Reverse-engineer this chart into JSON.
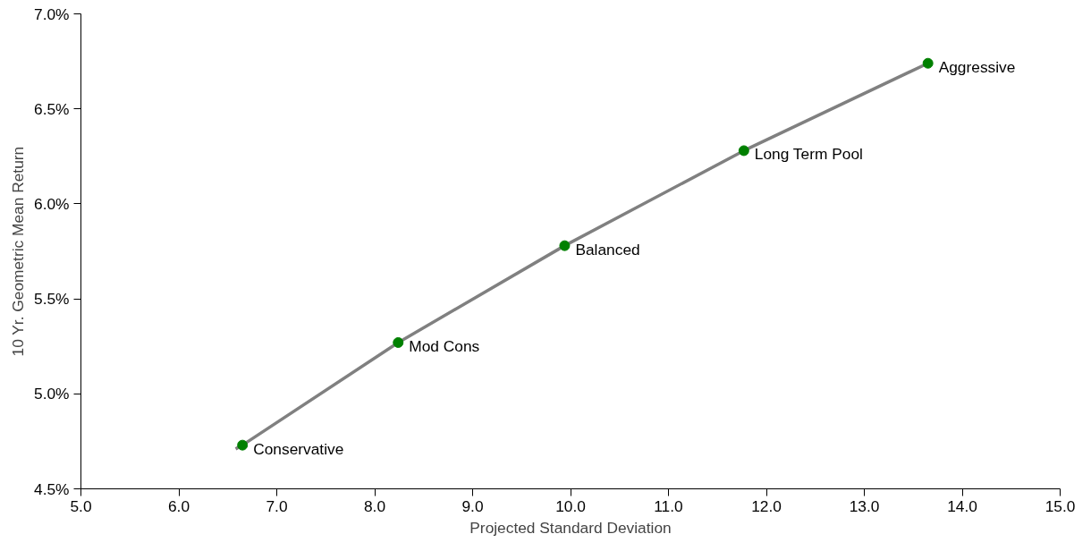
{
  "chart_data": {
    "type": "scatter",
    "xlabel": "Projected Standard Deviation",
    "ylabel": "10 Yr. Geometric Mean Return",
    "xlim": [
      5,
      15
    ],
    "ylim": [
      4.5,
      7
    ],
    "xticks": [
      {
        "value": 5,
        "label": "5.0"
      },
      {
        "value": 6,
        "label": "6.0"
      },
      {
        "value": 7,
        "label": "7.0"
      },
      {
        "value": 8,
        "label": "8.0"
      },
      {
        "value": 9,
        "label": "9.0"
      },
      {
        "value": 10,
        "label": "10.0"
      },
      {
        "value": 11,
        "label": "11.0"
      },
      {
        "value": 12,
        "label": "12.0"
      },
      {
        "value": 13,
        "label": "13.0"
      },
      {
        "value": 14,
        "label": "14.0"
      },
      {
        "value": 15,
        "label": "15.0"
      }
    ],
    "yticks": [
      {
        "value": 4.5,
        "label": "4.5%"
      },
      {
        "value": 5,
        "label": "5.0%"
      },
      {
        "value": 5.5,
        "label": "5.5%"
      },
      {
        "value": 6,
        "label": "6.0%"
      },
      {
        "value": 6.5,
        "label": "6.5%"
      },
      {
        "value": 7,
        "label": "7.0%"
      }
    ],
    "grid": false,
    "series": [
      {
        "type": "line",
        "color": "#808080",
        "x": [
          6.58,
          6.65,
          8.24,
          9.94,
          11.77,
          13.65
        ],
        "values": [
          4.71,
          4.73,
          5.27,
          5.78,
          6.28,
          6.74
        ]
      },
      {
        "marker": "circle",
        "color": "#008000",
        "x": [
          6.65,
          8.24,
          9.94,
          11.77,
          13.65
        ],
        "values": [
          4.73,
          5.27,
          5.78,
          6.28,
          6.74
        ]
      }
    ],
    "annotations": [
      {
        "text": "Conservative",
        "x": 6.65,
        "y": 4.73
      },
      {
        "text": "Mod Cons",
        "x": 8.24,
        "y": 5.27
      },
      {
        "text": "Balanced",
        "x": 9.94,
        "y": 5.78
      },
      {
        "text": "Long Term Pool",
        "x": 11.77,
        "y": 6.28
      },
      {
        "text": "Aggressive",
        "x": 13.65,
        "y": 6.74
      }
    ]
  }
}
